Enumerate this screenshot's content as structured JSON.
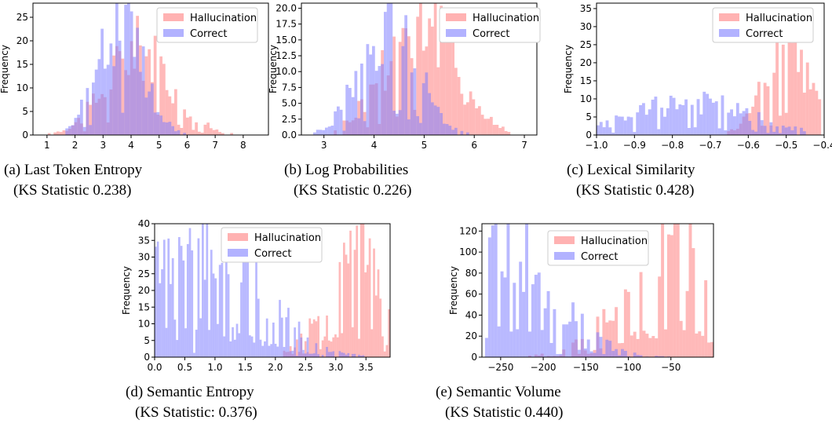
{
  "colors": {
    "hallucination": "#ff7f7f",
    "correct": "#7f7fff",
    "bar_opacity": 0.55
  },
  "chart_data": [
    {
      "type": "histogram",
      "title": "",
      "xlabel": "",
      "ylabel": "Frequency",
      "xlim": [
        0.5,
        8.9
      ],
      "ylim": [
        0,
        28
      ],
      "xticks": [
        1,
        2,
        3,
        4,
        5,
        6,
        7,
        8
      ],
      "yticks": [
        0,
        5,
        10,
        15,
        20,
        25
      ],
      "caption_line1": "(a) Last Token Entropy",
      "caption_line2": "(KS Statistic 0.238)",
      "legend": [
        "Hallucination",
        "Correct"
      ],
      "series": [
        {
          "name": "Hallucination",
          "center": 4.3,
          "spread": 1.15,
          "peak": 20,
          "min": 0.6,
          "max": 8.8
        },
        {
          "name": "Correct",
          "center": 3.6,
          "spread": 0.8,
          "peak": 27,
          "min": 1.0,
          "max": 7.6
        }
      ]
    },
    {
      "type": "histogram",
      "title": "",
      "xlabel": "",
      "ylabel": "Frequency",
      "xlim": [
        2.55,
        7.25
      ],
      "ylim": [
        0,
        20.8
      ],
      "xticks": [
        3,
        4,
        5,
        6,
        7
      ],
      "yticks": [
        0.0,
        2.5,
        5.0,
        7.5,
        10.0,
        12.5,
        15.0,
        17.5,
        20.0
      ],
      "caption_line1": "(b) Log Probabilities",
      "caption_line2": "(KS Statistic 0.226)",
      "legend": [
        "Hallucination",
        "Correct"
      ],
      "series": [
        {
          "name": "Hallucination",
          "center": 4.9,
          "spread": 0.7,
          "peak": 20,
          "min": 3.2,
          "max": 7.0
        },
        {
          "name": "Correct",
          "center": 4.3,
          "spread": 0.55,
          "peak": 20,
          "min": 2.7,
          "max": 6.4
        }
      ]
    },
    {
      "type": "histogram",
      "title": "",
      "xlabel": "",
      "ylabel": "Frequency",
      "xlim": [
        -1.0,
        -0.4
      ],
      "ylim": [
        0,
        36.5
      ],
      "xticks": [
        -1.0,
        -0.9,
        -0.8,
        -0.7,
        -0.6,
        -0.5,
        -0.4
      ],
      "yticks": [
        0,
        5,
        10,
        15,
        20,
        25,
        30,
        35
      ],
      "caption_line1": "(c) Lexical Similarity",
      "caption_line2": "(KS Statistic 0.428)",
      "legend": [
        "Hallucination",
        "Correct"
      ],
      "series": [
        {
          "name": "Hallucination",
          "center": -0.5,
          "spread": 0.06,
          "peak": 24,
          "min": -1.0,
          "max": -0.41
        },
        {
          "name": "Correct",
          "center": -0.75,
          "spread": 0.15,
          "peak": 10,
          "min": -1.0,
          "max": -0.45
        }
      ]
    },
    {
      "type": "histogram",
      "title": "",
      "xlabel": "",
      "ylabel": "Frequency",
      "xlim": [
        0.0,
        3.9
      ],
      "ylim": [
        0,
        40
      ],
      "xticks": [
        0.0,
        0.5,
        1.0,
        1.5,
        2.0,
        2.5,
        3.0,
        3.5
      ],
      "yticks": [
        0,
        5,
        10,
        15,
        20,
        25,
        30,
        35,
        40
      ],
      "caption_line1": "(d) Semantic Entropy",
      "caption_line2": "(KS Statistic: 0.376)",
      "legend": [
        "Hallucination",
        "Correct"
      ],
      "series": [
        {
          "name": "Hallucination",
          "center": 3.4,
          "spread": 0.5,
          "peak": 38,
          "min": 0.0,
          "max": 3.9
        },
        {
          "name": "Correct",
          "center": 0.8,
          "spread": 0.9,
          "peak": 40,
          "min": 0.0,
          "max": 3.9
        }
      ]
    },
    {
      "type": "histogram",
      "title": "",
      "xlabel": "",
      "ylabel": "Frequency",
      "xlim": [
        -272,
        0
      ],
      "ylim": [
        0,
        127
      ],
      "xticks": [
        -250,
        -200,
        -150,
        -100,
        -50
      ],
      "yticks": [
        0,
        20,
        40,
        60,
        80,
        100,
        120
      ],
      "caption_line1": "(e) Semantic Volume",
      "caption_line2": "(KS Statistic 0.440)",
      "legend": [
        "Hallucination",
        "Correct"
      ],
      "series": [
        {
          "name": "Hallucination",
          "center": -40,
          "spread": 60,
          "peak": 110,
          "min": -270,
          "max": 0
        },
        {
          "name": "Correct",
          "center": -250,
          "spread": 60,
          "peak": 120,
          "min": -270,
          "max": 0
        }
      ]
    }
  ]
}
